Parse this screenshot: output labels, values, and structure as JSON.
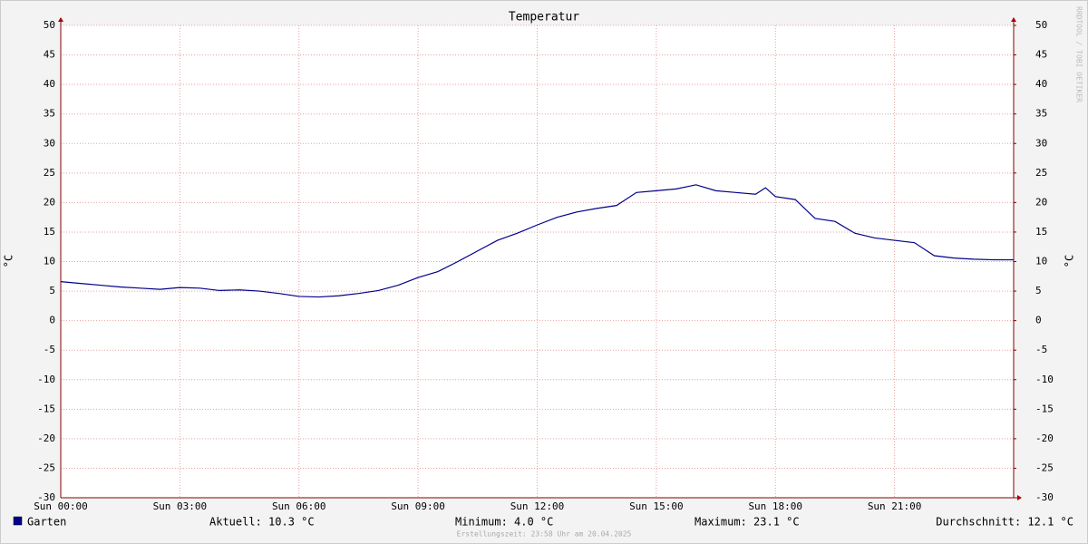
{
  "chart_data": {
    "type": "line",
    "title": "Temperatur",
    "y_label": "°C",
    "y2_label": "°C",
    "watermark": "RRDTOOL / TOBI OETIKER",
    "footer": "Erstellungszeit: 23:58 Uhr am 20.04.2025",
    "stats": [
      "Aktuell: 10.3 °C",
      "Minimum: 4.0 °C",
      "Maximum: 23.1 °C",
      "Durchschnitt: 12.1 °C"
    ],
    "x": [
      0,
      0.5,
      1,
      1.5,
      2,
      2.5,
      3,
      3.5,
      4,
      4.5,
      5,
      5.5,
      6,
      6.5,
      7,
      7.5,
      8,
      8.5,
      9,
      9.5,
      10,
      10.5,
      11,
      11.5,
      12,
      12.5,
      13,
      13.5,
      14,
      14.5,
      15,
      15.5,
      16,
      16.5,
      17,
      17.5,
      17.75,
      18,
      18.5,
      19,
      19.5,
      20,
      20.5,
      21,
      21.5,
      22,
      22.5,
      23,
      23.5,
      24
    ],
    "series": [
      {
        "name": "Garten",
        "color": "#00008b",
        "values": [
          6.6,
          6.3,
          6.0,
          5.7,
          5.5,
          5.3,
          5.6,
          5.5,
          5.1,
          5.2,
          5.0,
          4.6,
          4.1,
          4.0,
          4.2,
          4.6,
          5.1,
          6.0,
          7.3,
          8.3,
          10.0,
          11.8,
          13.6,
          14.8,
          16.2,
          17.5,
          18.4,
          19.0,
          19.5,
          21.7,
          22.0,
          22.3,
          23.0,
          22.0,
          21.7,
          21.4,
          22.5,
          21.0,
          20.5,
          17.3,
          16.8,
          14.8,
          14.0,
          13.6,
          13.2,
          11.0,
          10.6,
          10.4,
          10.3,
          10.3
        ]
      }
    ],
    "xlim": [
      0,
      24
    ],
    "xticks": [
      {
        "value": 0,
        "label": "Sun 00:00"
      },
      {
        "value": 3,
        "label": "Sun 03:00"
      },
      {
        "value": 6,
        "label": "Sun 06:00"
      },
      {
        "value": 9,
        "label": "Sun 09:00"
      },
      {
        "value": 12,
        "label": "Sun 12:00"
      },
      {
        "value": 15,
        "label": "Sun 15:00"
      },
      {
        "value": 18,
        "label": "Sun 18:00"
      },
      {
        "value": 21,
        "label": "Sun 21:00"
      }
    ],
    "ylim": [
      -30,
      50
    ],
    "yticks": [
      -30,
      -25,
      -20,
      -15,
      -10,
      -5,
      0,
      5,
      10,
      15,
      20,
      25,
      30,
      35,
      40,
      45,
      50
    ],
    "y2lim": [
      -30,
      50
    ],
    "y2ticks": [
      -30,
      -25,
      -20,
      -15,
      -10,
      -5,
      0,
      5,
      10,
      15,
      20,
      25,
      30,
      35,
      40,
      45,
      50
    ],
    "grid": true
  }
}
